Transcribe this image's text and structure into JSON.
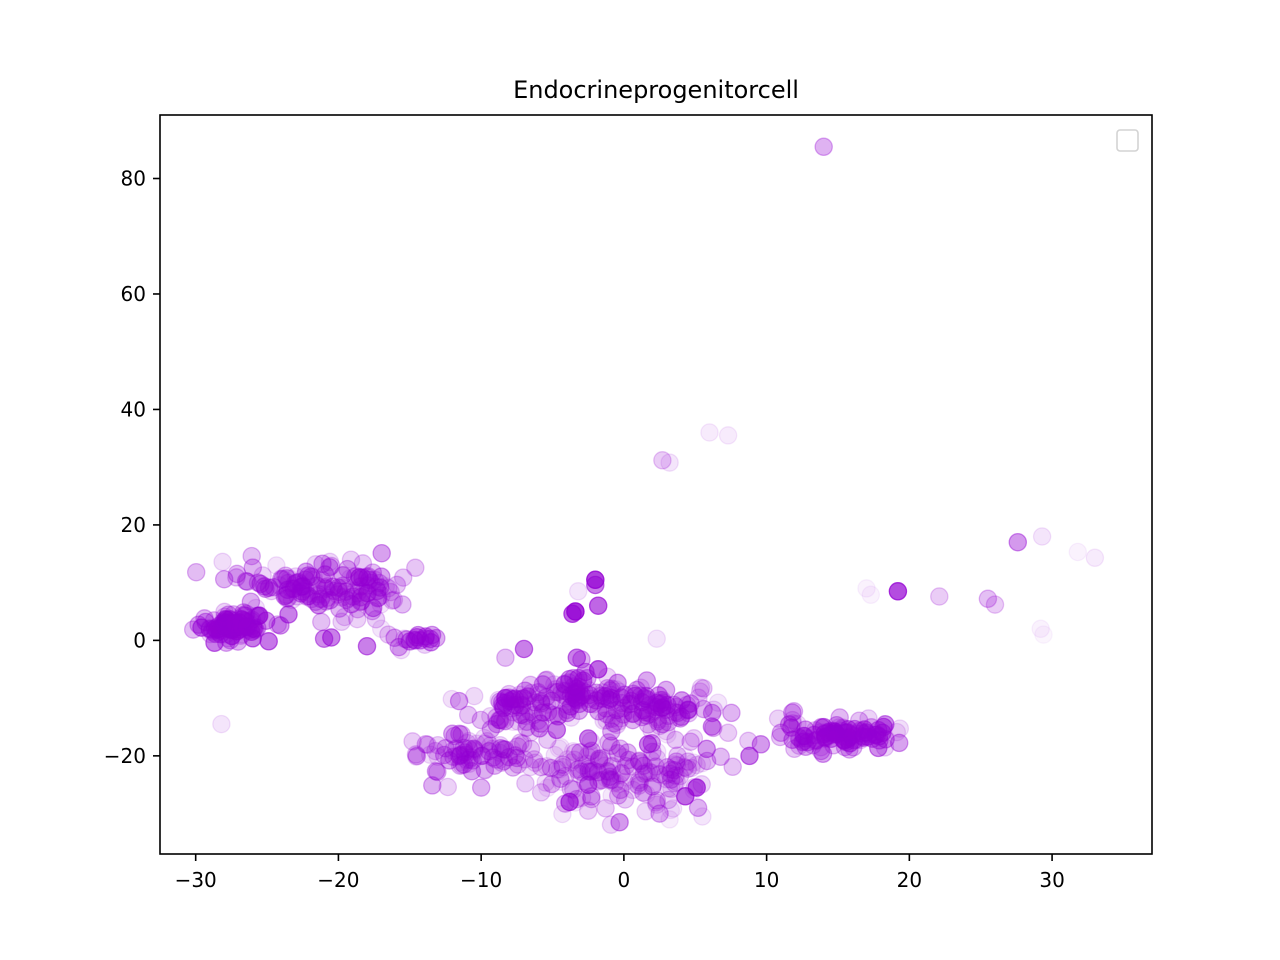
{
  "chart_data": {
    "type": "scatter",
    "title": "Endocrineprogenitorcell",
    "xlabel": "",
    "ylabel": "",
    "xlim": [
      -32.5,
      37
    ],
    "ylim": [
      -37,
      91
    ],
    "xticks": [
      -30,
      -20,
      -10,
      0,
      10,
      20,
      30
    ],
    "yticks": [
      -20,
      0,
      20,
      40,
      60,
      80
    ],
    "xtick_labels": [
      "−30",
      "−20",
      "−10",
      "0",
      "10",
      "20",
      "30"
    ],
    "ytick_labels": [
      "−20",
      "0",
      "20",
      "40",
      "60",
      "80"
    ],
    "grid": false,
    "legend": {
      "placement": "top-right",
      "entries": []
    },
    "marker_color": "#9400d3",
    "clusters": [
      {
        "cx": -27.5,
        "cy": 2.5,
        "sx": 1.3,
        "sy": 1.2,
        "n": 90,
        "alpha": 0.35
      },
      {
        "cx": -23.0,
        "cy": 9.5,
        "sx": 2.0,
        "sy": 2.0,
        "n": 70,
        "alpha": 0.25
      },
      {
        "cx": -19.0,
        "cy": 9.0,
        "sx": 2.0,
        "sy": 2.2,
        "n": 80,
        "alpha": 0.25
      },
      {
        "cx": -15.0,
        "cy": 0.0,
        "sx": 0.8,
        "sy": 1.0,
        "n": 18,
        "alpha": 0.3
      },
      {
        "cx": -11.0,
        "cy": -20.0,
        "sx": 2.3,
        "sy": 1.8,
        "n": 80,
        "alpha": 0.22
      },
      {
        "cx": -7.5,
        "cy": -12.0,
        "sx": 1.6,
        "sy": 1.8,
        "n": 60,
        "alpha": 0.25
      },
      {
        "cx": -3.5,
        "cy": -9.0,
        "sx": 2.0,
        "sy": 1.8,
        "n": 90,
        "alpha": 0.25
      },
      {
        "cx": 2.0,
        "cy": -12.0,
        "sx": 2.0,
        "sy": 2.0,
        "n": 90,
        "alpha": 0.25
      },
      {
        "cx": 0.0,
        "cy": -24.0,
        "sx": 2.8,
        "sy": 2.8,
        "n": 90,
        "alpha": 0.18
      },
      {
        "cx": -4.0,
        "cy": -22.0,
        "sx": 2.0,
        "sy": 2.5,
        "n": 40,
        "alpha": 0.18
      },
      {
        "cx": 4.0,
        "cy": -22.0,
        "sx": 1.6,
        "sy": 2.5,
        "n": 30,
        "alpha": 0.18
      },
      {
        "cx": 15.0,
        "cy": -16.5,
        "sx": 2.0,
        "sy": 1.2,
        "n": 110,
        "alpha": 0.3
      }
    ],
    "points": [
      {
        "x": 14.0,
        "y": 85.5,
        "alpha": 0.3
      },
      {
        "x": 6.0,
        "y": 36.0,
        "alpha": 0.08
      },
      {
        "x": 7.3,
        "y": 35.5,
        "alpha": 0.08
      },
      {
        "x": 2.7,
        "y": 31.2,
        "alpha": 0.2
      },
      {
        "x": 3.2,
        "y": 30.8,
        "alpha": 0.1
      },
      {
        "x": 27.6,
        "y": 17.0,
        "alpha": 0.4
      },
      {
        "x": 29.3,
        "y": 18.0,
        "alpha": 0.1
      },
      {
        "x": 31.8,
        "y": 15.3,
        "alpha": 0.05
      },
      {
        "x": 33.0,
        "y": 14.3,
        "alpha": 0.08
      },
      {
        "x": 19.2,
        "y": 8.5,
        "alpha": 0.7
      },
      {
        "x": 22.1,
        "y": 7.6,
        "alpha": 0.2
      },
      {
        "x": 25.5,
        "y": 7.2,
        "alpha": 0.25
      },
      {
        "x": 26.0,
        "y": 6.2,
        "alpha": 0.2
      },
      {
        "x": 17.0,
        "y": 9.0,
        "alpha": 0.05
      },
      {
        "x": 17.3,
        "y": 7.9,
        "alpha": 0.05
      },
      {
        "x": 29.2,
        "y": 2.0,
        "alpha": 0.05
      },
      {
        "x": 29.4,
        "y": 1.0,
        "alpha": 0.04
      },
      {
        "x": 2.3,
        "y": 0.3,
        "alpha": 0.1
      },
      {
        "x": -28.2,
        "y": -14.5,
        "alpha": 0.1
      },
      {
        "x": -28.0,
        "y": 10.6,
        "alpha": 0.3
      },
      {
        "x": -26.0,
        "y": 12.6,
        "alpha": 0.3
      },
      {
        "x": -23.5,
        "y": 4.5,
        "alpha": 0.5
      },
      {
        "x": -2.0,
        "y": 10.5,
        "alpha": 0.75
      },
      {
        "x": -2.0,
        "y": 9.6,
        "alpha": 0.5
      },
      {
        "x": -1.8,
        "y": 6.0,
        "alpha": 0.6
      },
      {
        "x": -3.4,
        "y": 5.0,
        "alpha": 0.8
      },
      {
        "x": -3.6,
        "y": 4.6,
        "alpha": 0.6
      },
      {
        "x": -3.2,
        "y": 8.5,
        "alpha": 0.1
      },
      {
        "x": -7.0,
        "y": -1.5,
        "alpha": 0.5
      },
      {
        "x": -18.0,
        "y": -1.0,
        "alpha": 0.5
      },
      {
        "x": -20.5,
        "y": 0.5,
        "alpha": 0.5
      },
      {
        "x": -21.0,
        "y": 0.3,
        "alpha": 0.45
      },
      {
        "x": -21.2,
        "y": 3.2,
        "alpha": 0.25
      },
      {
        "x": -17.0,
        "y": 2.0,
        "alpha": 0.1
      },
      {
        "x": -16.5,
        "y": 1.0,
        "alpha": 0.2
      },
      {
        "x": 8.8,
        "y": -20.0,
        "alpha": 0.5
      },
      {
        "x": 9.6,
        "y": -18.0,
        "alpha": 0.4
      },
      {
        "x": 7.3,
        "y": -16.0,
        "alpha": 0.2
      },
      {
        "x": 11.0,
        "y": -16.0,
        "alpha": 0.3
      },
      {
        "x": 11.8,
        "y": -12.5,
        "alpha": 0.3
      },
      {
        "x": -3.8,
        "y": -28.0,
        "alpha": 0.6
      },
      {
        "x": -2.5,
        "y": -25.0,
        "alpha": 0.5
      },
      {
        "x": -2.5,
        "y": -29.5,
        "alpha": 0.2
      },
      {
        "x": -0.3,
        "y": -31.5,
        "alpha": 0.4
      },
      {
        "x": 2.5,
        "y": -30.0,
        "alpha": 0.3
      },
      {
        "x": 3.2,
        "y": -31.0,
        "alpha": 0.08
      },
      {
        "x": 5.1,
        "y": -25.5,
        "alpha": 0.6
      },
      {
        "x": 4.3,
        "y": -27.0,
        "alpha": 0.6
      },
      {
        "x": 5.5,
        "y": -30.5,
        "alpha": 0.1
      },
      {
        "x": 5.2,
        "y": -29.0,
        "alpha": 0.3
      },
      {
        "x": -3.3,
        "y": -3.0,
        "alpha": 0.5
      },
      {
        "x": -8.3,
        "y": -3.0,
        "alpha": 0.25
      },
      {
        "x": -8.3,
        "y": -10.0,
        "alpha": 0.6
      },
      {
        "x": -1.8,
        "y": -5.0,
        "alpha": 0.6
      },
      {
        "x": 1.7,
        "y": -18.0,
        "alpha": 0.5
      },
      {
        "x": -2.5,
        "y": -17.0,
        "alpha": 0.5
      },
      {
        "x": -4.7,
        "y": -15.5,
        "alpha": 0.5
      },
      {
        "x": 5.8,
        "y": -18.8,
        "alpha": 0.4
      },
      {
        "x": 6.3,
        "y": -12.0,
        "alpha": 0.15
      },
      {
        "x": 6.6,
        "y": -10.8,
        "alpha": 0.1
      },
      {
        "x": 5.4,
        "y": -8.2,
        "alpha": 0.15
      },
      {
        "x": -14.8,
        "y": -17.5,
        "alpha": 0.2
      },
      {
        "x": -14.5,
        "y": -20.0,
        "alpha": 0.25
      },
      {
        "x": -10.0,
        "y": -25.5,
        "alpha": 0.3
      }
    ]
  }
}
